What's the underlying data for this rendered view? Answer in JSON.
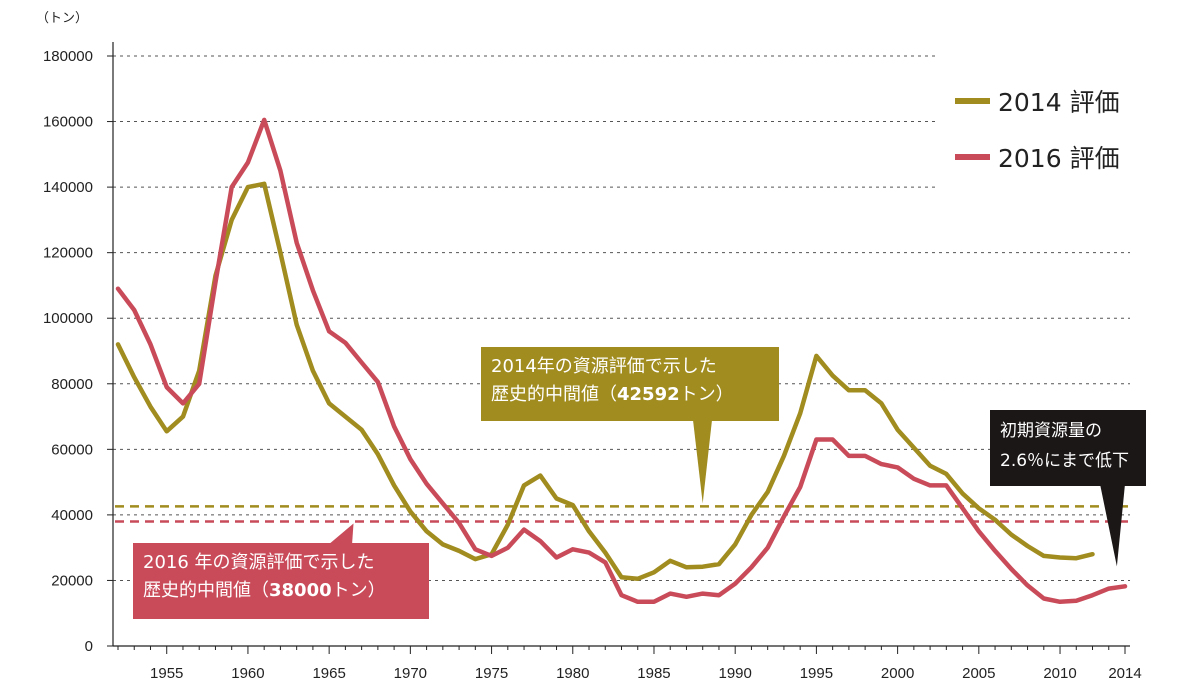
{
  "chart_data": {
    "type": "line",
    "ylabel": "（トン）",
    "ylim": [
      0,
      180000
    ],
    "y_ticks": [
      0,
      20000,
      40000,
      60000,
      80000,
      100000,
      120000,
      140000,
      160000,
      180000
    ],
    "x_ticks": [
      1955,
      1960,
      1965,
      1970,
      1975,
      1980,
      1985,
      1990,
      1995,
      2000,
      2005,
      2010,
      2014
    ],
    "xlim": [
      1952,
      2014
    ],
    "grid": true,
    "legend_position": "top-right",
    "series": [
      {
        "name": "2014 評価",
        "color": "#a08c1f",
        "points": [
          [
            1952,
            92000
          ],
          [
            1953,
            82000
          ],
          [
            1954,
            73000
          ],
          [
            1955,
            65500
          ],
          [
            1956,
            70000
          ],
          [
            1957,
            84000
          ],
          [
            1958,
            113000
          ],
          [
            1959,
            130000
          ],
          [
            1960,
            140000
          ],
          [
            1961,
            141000
          ],
          [
            1962,
            120000
          ],
          [
            1963,
            98000
          ],
          [
            1964,
            84000
          ],
          [
            1965,
            74000
          ],
          [
            1966,
            70000
          ],
          [
            1967,
            66000
          ],
          [
            1968,
            58500
          ],
          [
            1969,
            49000
          ],
          [
            1970,
            41000
          ],
          [
            1971,
            35000
          ],
          [
            1972,
            31000
          ],
          [
            1973,
            29000
          ],
          [
            1974,
            26500
          ],
          [
            1975,
            28000
          ],
          [
            1976,
            37000
          ],
          [
            1977,
            49000
          ],
          [
            1978,
            52000
          ],
          [
            1979,
            45000
          ],
          [
            1980,
            43000
          ],
          [
            1981,
            35000
          ],
          [
            1982,
            28500
          ],
          [
            1983,
            21000
          ],
          [
            1984,
            20500
          ],
          [
            1985,
            22500
          ],
          [
            1986,
            26000
          ],
          [
            1987,
            24000
          ],
          [
            1988,
            24200
          ],
          [
            1989,
            25000
          ],
          [
            1990,
            31000
          ],
          [
            1991,
            40000
          ],
          [
            1992,
            47000
          ],
          [
            1993,
            58000
          ],
          [
            1994,
            71000
          ],
          [
            1995,
            88500
          ],
          [
            1996,
            82500
          ],
          [
            1997,
            78000
          ],
          [
            1998,
            78000
          ],
          [
            1999,
            74000
          ],
          [
            2000,
            66000
          ],
          [
            2001,
            60500
          ],
          [
            2002,
            55000
          ],
          [
            2003,
            52500
          ],
          [
            2004,
            46500
          ],
          [
            2005,
            42000
          ],
          [
            2006,
            38500
          ],
          [
            2007,
            34000
          ],
          [
            2008,
            30500
          ],
          [
            2009,
            27500
          ],
          [
            2010,
            27000
          ],
          [
            2011,
            26800
          ],
          [
            2012,
            28000
          ]
        ],
        "reference": 42592
      },
      {
        "name": "2016 評価",
        "color": "#c94b5a",
        "points": [
          [
            1952,
            109000
          ],
          [
            1953,
            102500
          ],
          [
            1954,
            92000
          ],
          [
            1955,
            79000
          ],
          [
            1956,
            74000
          ],
          [
            1957,
            80000
          ],
          [
            1958,
            111000
          ],
          [
            1959,
            140000
          ],
          [
            1960,
            147500
          ],
          [
            1961,
            160500
          ],
          [
            1962,
            145000
          ],
          [
            1963,
            123000
          ],
          [
            1964,
            108500
          ],
          [
            1965,
            96000
          ],
          [
            1966,
            92500
          ],
          [
            1967,
            86500
          ],
          [
            1968,
            80500
          ],
          [
            1969,
            67000
          ],
          [
            1970,
            57000
          ],
          [
            1971,
            49500
          ],
          [
            1972,
            43500
          ],
          [
            1973,
            37500
          ],
          [
            1974,
            29500
          ],
          [
            1975,
            27500
          ],
          [
            1976,
            30000
          ],
          [
            1977,
            35500
          ],
          [
            1978,
            32000
          ],
          [
            1979,
            27000
          ],
          [
            1980,
            29500
          ],
          [
            1981,
            28500
          ],
          [
            1982,
            25500
          ],
          [
            1983,
            15500
          ],
          [
            1984,
            13500
          ],
          [
            1985,
            13500
          ],
          [
            1986,
            16000
          ],
          [
            1987,
            15000
          ],
          [
            1988,
            16000
          ],
          [
            1989,
            15500
          ],
          [
            1990,
            19000
          ],
          [
            1991,
            24000
          ],
          [
            1992,
            30000
          ],
          [
            1993,
            39500
          ],
          [
            1994,
            48500
          ],
          [
            1995,
            63000
          ],
          [
            1996,
            63000
          ],
          [
            1997,
            58000
          ],
          [
            1998,
            58000
          ],
          [
            1999,
            55500
          ],
          [
            2000,
            54500
          ],
          [
            2001,
            51000
          ],
          [
            2002,
            49000
          ],
          [
            2003,
            49000
          ],
          [
            2004,
            42000
          ],
          [
            2005,
            35000
          ],
          [
            2006,
            29000
          ],
          [
            2007,
            23500
          ],
          [
            2008,
            18500
          ],
          [
            2009,
            14500
          ],
          [
            2010,
            13500
          ],
          [
            2011,
            13800
          ],
          [
            2012,
            15500
          ],
          [
            2013,
            17500
          ],
          [
            2014,
            18200
          ]
        ],
        "reference": 38000
      }
    ],
    "annotations": {
      "callout_2014": {
        "line1": "2014年の資源評価で示した",
        "line2_prefix": "歴史的中間値（",
        "line2_value": "42592",
        "line2_suffix": "トン）"
      },
      "callout_2016": {
        "line1": "2016 年の資源評価で示した",
        "line2_prefix": "歴史的中間値（",
        "line2_value": "38000",
        "line2_suffix": "トン）"
      },
      "callout_final": {
        "line1": "初期資源量の",
        "line2": "2.6％にまで低下"
      }
    }
  }
}
